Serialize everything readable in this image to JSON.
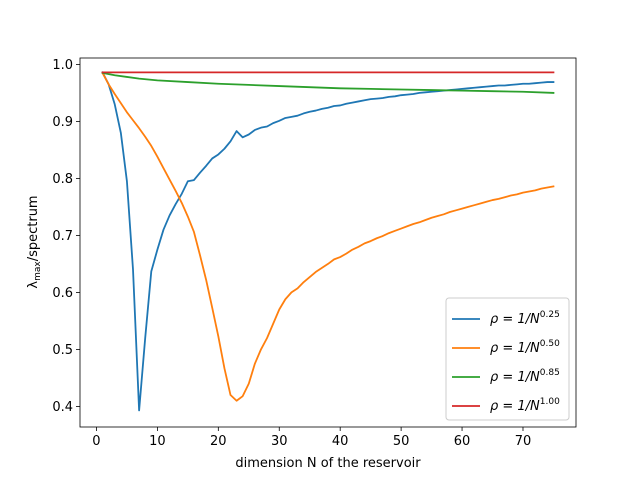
{
  "chart_data": {
    "type": "line",
    "xlabel": "dimension N of the reservoir",
    "ylabel": {
      "base": "λ",
      "sub": "max",
      "rest": "/spectrum"
    },
    "xlim": [
      -2.7,
      78.7
    ],
    "ylim": [
      0.3639,
      1.0112
    ],
    "xticks": [
      0,
      10,
      20,
      30,
      40,
      50,
      60,
      70
    ],
    "yticks": [
      0.4,
      0.5,
      0.6,
      0.7,
      0.8,
      0.9,
      1.0
    ],
    "ytick_labels": [
      "0.4",
      "0.5",
      "0.6",
      "0.7",
      "0.8",
      "0.9",
      "1.0"
    ],
    "grid": false,
    "legend_position": "lower right",
    "series": [
      {
        "name": {
          "base": "ρ = 1/N",
          "sup": "0.25"
        },
        "color": "#1f77b4",
        "x": [
          1,
          2,
          3,
          4,
          5,
          6,
          7,
          8,
          9,
          10,
          11,
          12,
          13,
          14,
          15,
          16,
          17,
          18,
          19,
          20,
          21,
          22,
          23,
          24,
          25,
          26,
          27,
          28,
          29,
          30,
          31,
          32,
          33,
          34,
          35,
          36,
          37,
          38,
          39,
          40,
          41,
          42,
          43,
          44,
          45,
          46,
          47,
          48,
          49,
          50,
          51,
          52,
          53,
          54,
          55,
          56,
          57,
          58,
          59,
          60,
          61,
          62,
          63,
          64,
          65,
          66,
          67,
          68,
          69,
          70,
          71,
          72,
          73,
          74,
          75
        ],
        "y": [
          0.986,
          0.965,
          0.93,
          0.88,
          0.795,
          0.64,
          0.393,
          0.52,
          0.637,
          0.675,
          0.71,
          0.735,
          0.755,
          0.773,
          0.795,
          0.797,
          0.81,
          0.822,
          0.835,
          0.842,
          0.852,
          0.865,
          0.883,
          0.872,
          0.877,
          0.885,
          0.889,
          0.891,
          0.897,
          0.901,
          0.906,
          0.908,
          0.91,
          0.914,
          0.917,
          0.919,
          0.922,
          0.924,
          0.927,
          0.928,
          0.931,
          0.933,
          0.935,
          0.937,
          0.939,
          0.94,
          0.941,
          0.943,
          0.944,
          0.946,
          0.947,
          0.948,
          0.95,
          0.951,
          0.952,
          0.953,
          0.954,
          0.955,
          0.956,
          0.957,
          0.958,
          0.959,
          0.96,
          0.961,
          0.962,
          0.963,
          0.963,
          0.964,
          0.965,
          0.966,
          0.966,
          0.967,
          0.968,
          0.969,
          0.969
        ]
      },
      {
        "name": {
          "base": "ρ = 1/N",
          "sup": "0.50"
        },
        "color": "#ff7f0e",
        "x": [
          1,
          2,
          3,
          4,
          5,
          6,
          7,
          8,
          9,
          10,
          11,
          12,
          13,
          14,
          15,
          16,
          17,
          18,
          19,
          20,
          21,
          22,
          23,
          24,
          25,
          26,
          27,
          28,
          29,
          30,
          31,
          32,
          33,
          34,
          35,
          36,
          37,
          38,
          39,
          40,
          41,
          42,
          43,
          44,
          45,
          46,
          47,
          48,
          49,
          50,
          51,
          52,
          53,
          54,
          55,
          56,
          57,
          58,
          59,
          60,
          61,
          62,
          63,
          64,
          65,
          66,
          67,
          68,
          69,
          70,
          71,
          72,
          73,
          74,
          75
        ],
        "y": [
          0.985,
          0.965,
          0.948,
          0.932,
          0.916,
          0.902,
          0.888,
          0.873,
          0.857,
          0.838,
          0.818,
          0.798,
          0.778,
          0.757,
          0.733,
          0.706,
          0.665,
          0.622,
          0.573,
          0.523,
          0.467,
          0.42,
          0.41,
          0.418,
          0.44,
          0.475,
          0.5,
          0.52,
          0.545,
          0.57,
          0.588,
          0.6,
          0.607,
          0.618,
          0.627,
          0.636,
          0.643,
          0.65,
          0.658,
          0.662,
          0.668,
          0.675,
          0.68,
          0.686,
          0.69,
          0.695,
          0.699,
          0.704,
          0.708,
          0.712,
          0.716,
          0.72,
          0.723,
          0.727,
          0.731,
          0.734,
          0.737,
          0.741,
          0.744,
          0.747,
          0.75,
          0.753,
          0.756,
          0.759,
          0.762,
          0.764,
          0.767,
          0.77,
          0.772,
          0.775,
          0.777,
          0.779,
          0.782,
          0.784,
          0.786
        ]
      },
      {
        "name": {
          "base": "ρ = 1/N",
          "sup": "0.85"
        },
        "color": "#2ca02c",
        "x": [
          1,
          3,
          5,
          7,
          10,
          15,
          20,
          25,
          30,
          35,
          40,
          45,
          50,
          55,
          60,
          65,
          70,
          75
        ],
        "y": [
          0.985,
          0.981,
          0.978,
          0.975,
          0.972,
          0.969,
          0.966,
          0.964,
          0.962,
          0.96,
          0.958,
          0.957,
          0.956,
          0.955,
          0.954,
          0.953,
          0.952,
          0.95
        ]
      },
      {
        "name": {
          "base": "ρ = 1/N",
          "sup": "1.00"
        },
        "color": "#d62728",
        "x": [
          1,
          75
        ],
        "y": [
          0.986,
          0.986
        ]
      }
    ]
  }
}
